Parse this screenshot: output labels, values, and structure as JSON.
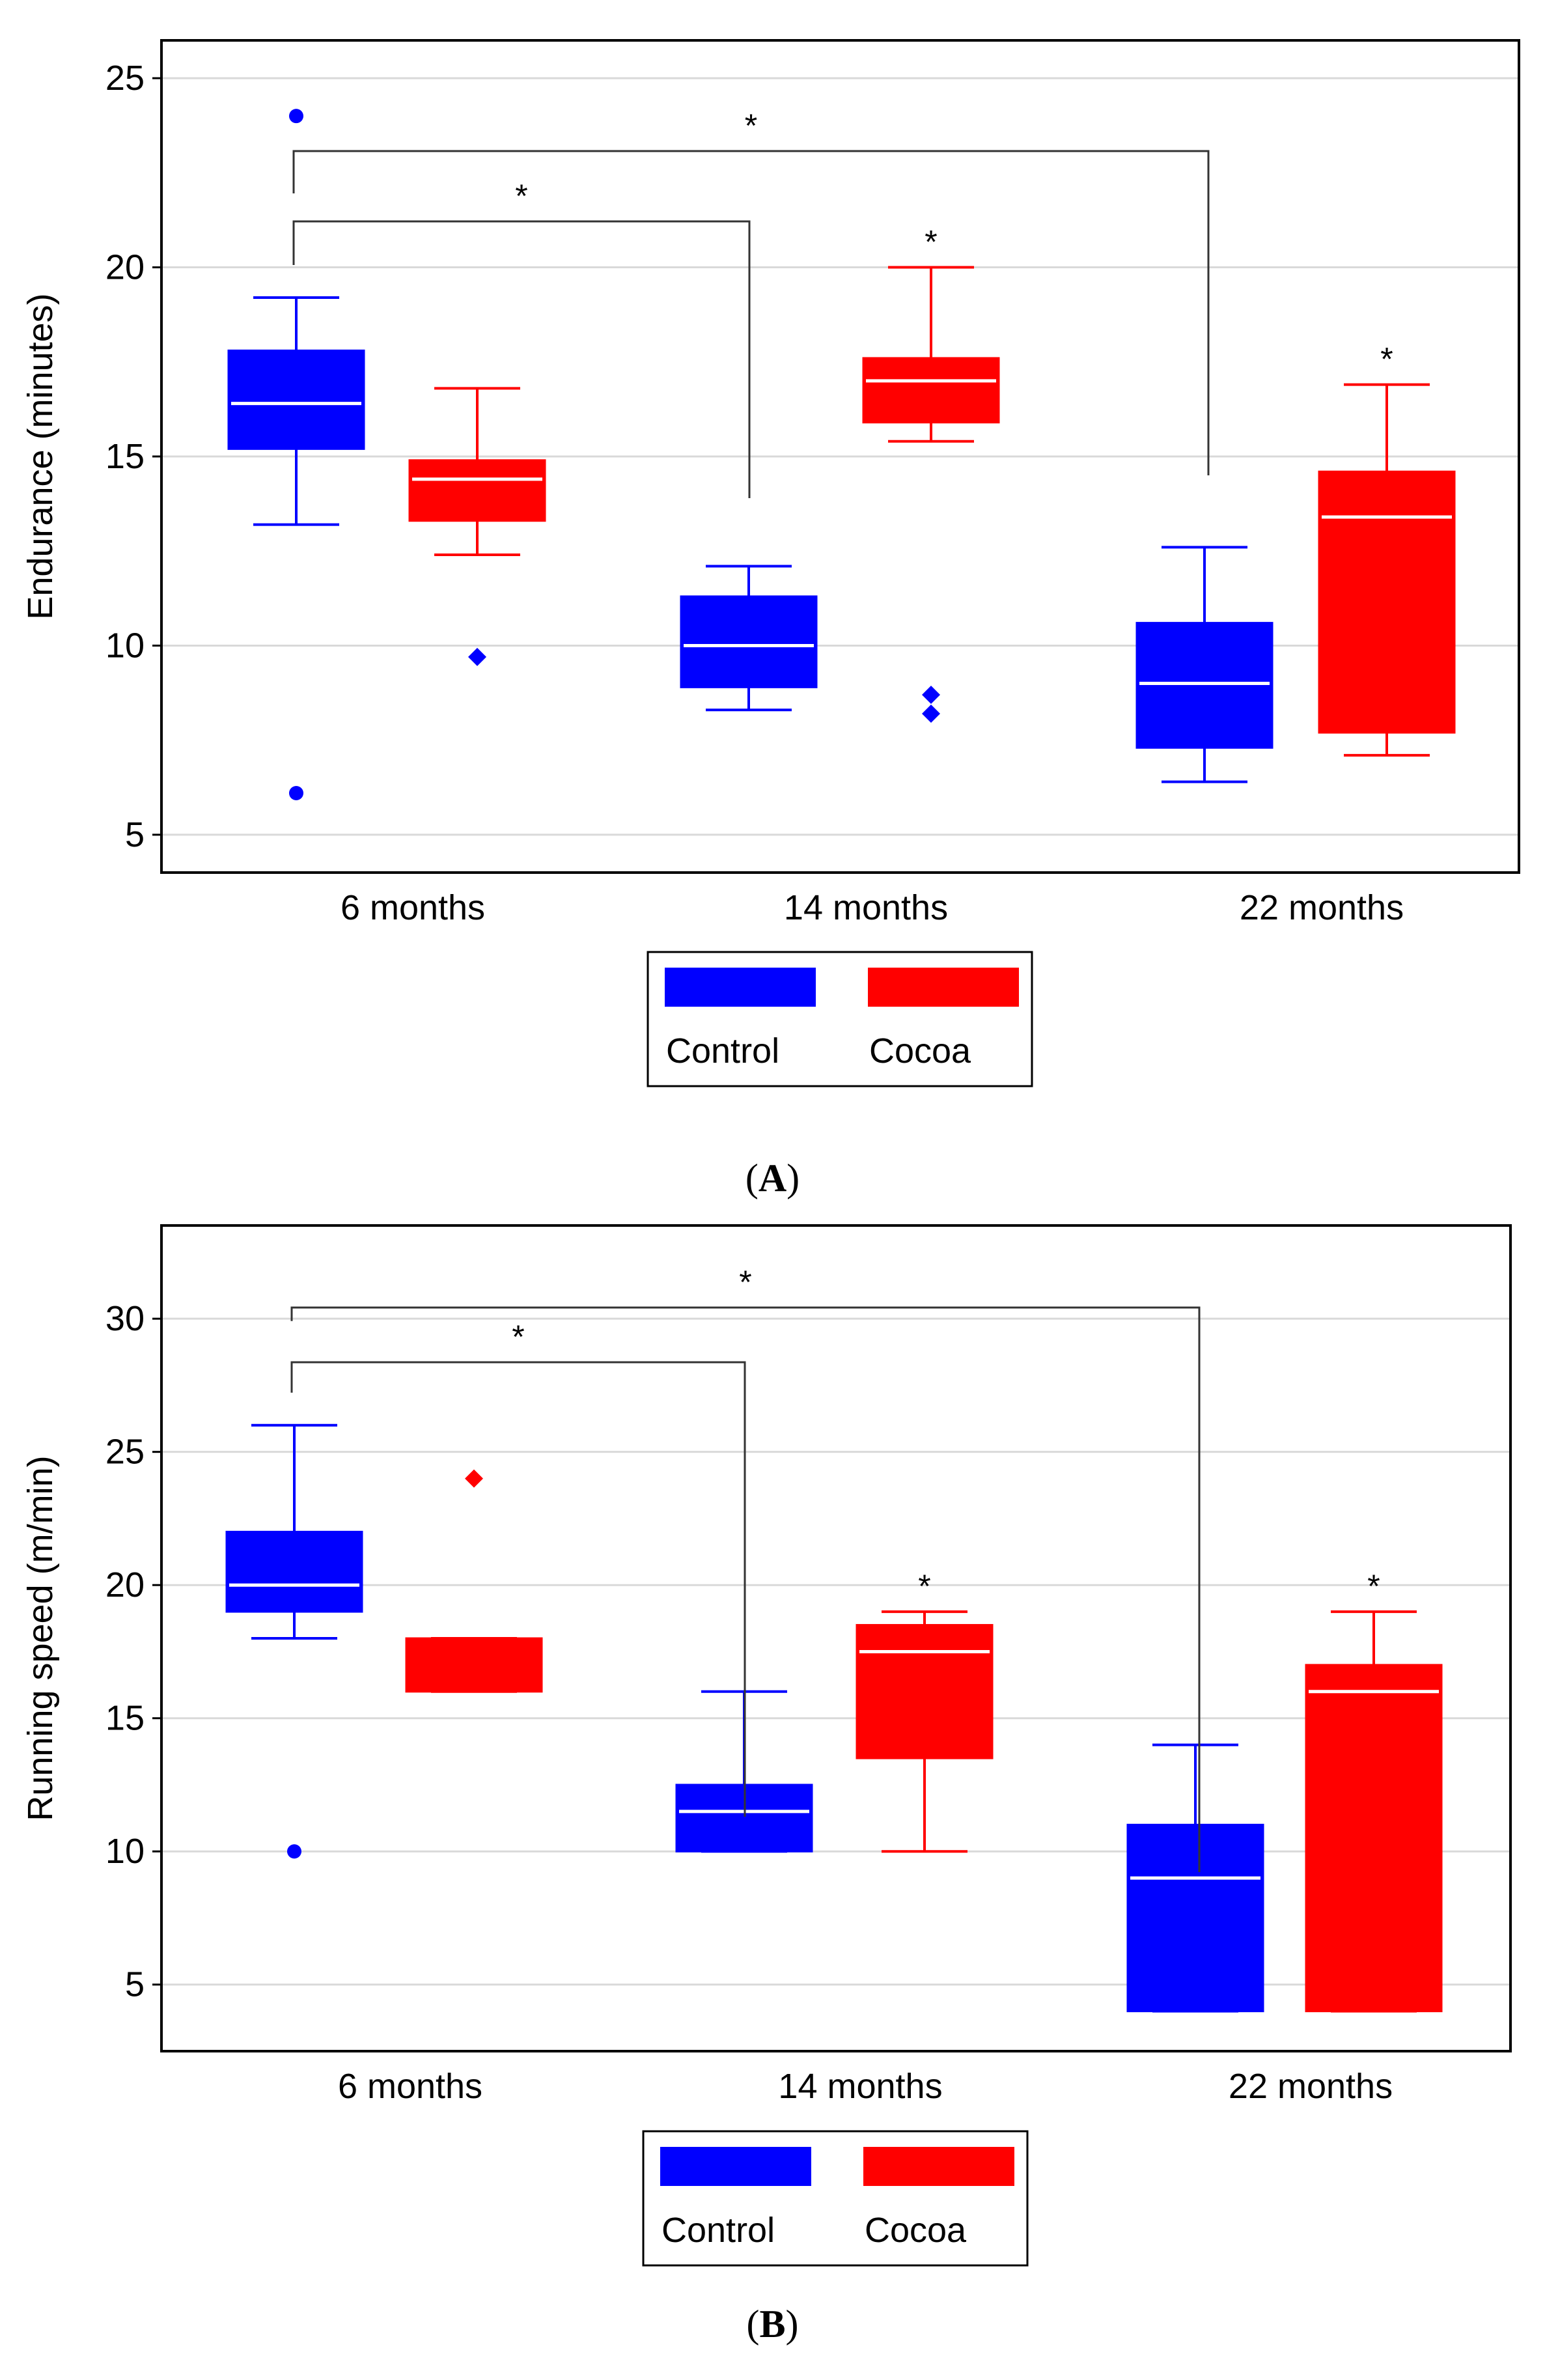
{
  "colors": {
    "control": "#0000ff",
    "cocoa": "#ff0000",
    "grid": "#d9d9d9",
    "axis": "#000000"
  },
  "chart_data": [
    {
      "panel": "A",
      "type": "boxplot",
      "ylabel": "Endurance (minutes)",
      "categories": [
        "6 months",
        "14 months",
        "22 months"
      ],
      "ylim": [
        4,
        26
      ],
      "yticks": [
        5,
        10,
        15,
        20,
        25
      ],
      "grid": true,
      "legend_position": "bottom",
      "series": [
        {
          "name": "Control",
          "color": "#0000ff",
          "boxes": [
            {
              "whisker_low": 13.2,
              "q1": 15.2,
              "median": 16.4,
              "q3": 17.8,
              "whisker_high": 19.2,
              "outliers": [
                {
                  "value": 24.0,
                  "shape": "circle"
                },
                {
                  "value": 6.1,
                  "shape": "circle"
                }
              ]
            },
            {
              "whisker_low": 8.3,
              "q1": 8.9,
              "median": 10.0,
              "q3": 11.3,
              "whisker_high": 12.1,
              "outliers": []
            },
            {
              "whisker_low": 6.4,
              "q1": 7.3,
              "median": 9.0,
              "q3": 10.6,
              "whisker_high": 12.6,
              "outliers": []
            }
          ]
        },
        {
          "name": "Cocoa",
          "color": "#ff0000",
          "boxes": [
            {
              "whisker_low": 12.4,
              "q1": 13.3,
              "median": 14.4,
              "q3": 14.9,
              "whisker_high": 16.8,
              "outliers": [
                {
                  "value": 9.7,
                  "shape": "diamond",
                  "color": "#0000ff"
                }
              ]
            },
            {
              "whisker_low": 15.4,
              "q1": 15.9,
              "median": 17.0,
              "q3": 17.6,
              "whisker_high": 20.0,
              "outliers": [
                {
                  "value": 8.7,
                  "shape": "diamond",
                  "color": "#0000ff"
                },
                {
                  "value": 8.2,
                  "shape": "diamond",
                  "color": "#0000ff"
                }
              ]
            },
            {
              "whisker_low": 7.1,
              "q1": 7.7,
              "median": 13.4,
              "q3": 14.6,
              "whisker_high": 16.9,
              "outliers": []
            }
          ]
        }
      ],
      "significance": [
        {
          "from": "6 months",
          "to": "22 months",
          "label": "*"
        },
        {
          "from": "6 months",
          "to": "14 months",
          "label": "*"
        }
      ],
      "box_annotations": [
        {
          "series": "Cocoa",
          "category": "14 months",
          "label": "*"
        },
        {
          "series": "Cocoa",
          "category": "22 months",
          "label": "*"
        }
      ],
      "panel_label": "A"
    },
    {
      "panel": "B",
      "type": "boxplot",
      "ylabel": "Running speed (m/min)",
      "categories": [
        "6 months",
        "14 months",
        "22 months"
      ],
      "ylim": [
        2.5,
        33.5
      ],
      "yticks": [
        5,
        10,
        15,
        20,
        25,
        30
      ],
      "grid": true,
      "legend_position": "bottom",
      "series": [
        {
          "name": "Control",
          "color": "#0000ff",
          "boxes": [
            {
              "whisker_low": 18,
              "q1": 19,
              "median": 20,
              "q3": 22,
              "whisker_high": 26,
              "outliers": [
                {
                  "value": 10,
                  "shape": "circle"
                }
              ]
            },
            {
              "whisker_low": 10,
              "q1": 10,
              "median": 11.5,
              "q3": 12.5,
              "whisker_high": 16,
              "outliers": []
            },
            {
              "whisker_low": 4,
              "q1": 4,
              "median": 9,
              "q3": 11,
              "whisker_high": 14,
              "outliers": []
            }
          ]
        },
        {
          "name": "Cocoa",
          "color": "#ff0000",
          "boxes": [
            {
              "whisker_low": 16,
              "q1": 16,
              "median": 16,
              "q3": 18,
              "whisker_high": 18,
              "outliers": [
                {
                  "value": 24,
                  "shape": "diamond",
                  "color": "#ff0000"
                }
              ]
            },
            {
              "whisker_low": 10,
              "q1": 13.5,
              "median": 17.5,
              "q3": 18.5,
              "whisker_high": 19,
              "outliers": []
            },
            {
              "whisker_low": 4,
              "q1": 4,
              "median": 16,
              "q3": 17,
              "whisker_high": 19,
              "outliers": []
            }
          ]
        }
      ],
      "significance": [
        {
          "from": "6 months",
          "to": "22 months",
          "label": "*"
        },
        {
          "from": "6 months",
          "to": "14 months",
          "label": "*"
        }
      ],
      "box_annotations": [
        {
          "series": "Cocoa",
          "category": "14 months",
          "label": "*"
        },
        {
          "series": "Cocoa",
          "category": "22 months",
          "label": "*"
        }
      ],
      "panel_label": "B"
    }
  ]
}
